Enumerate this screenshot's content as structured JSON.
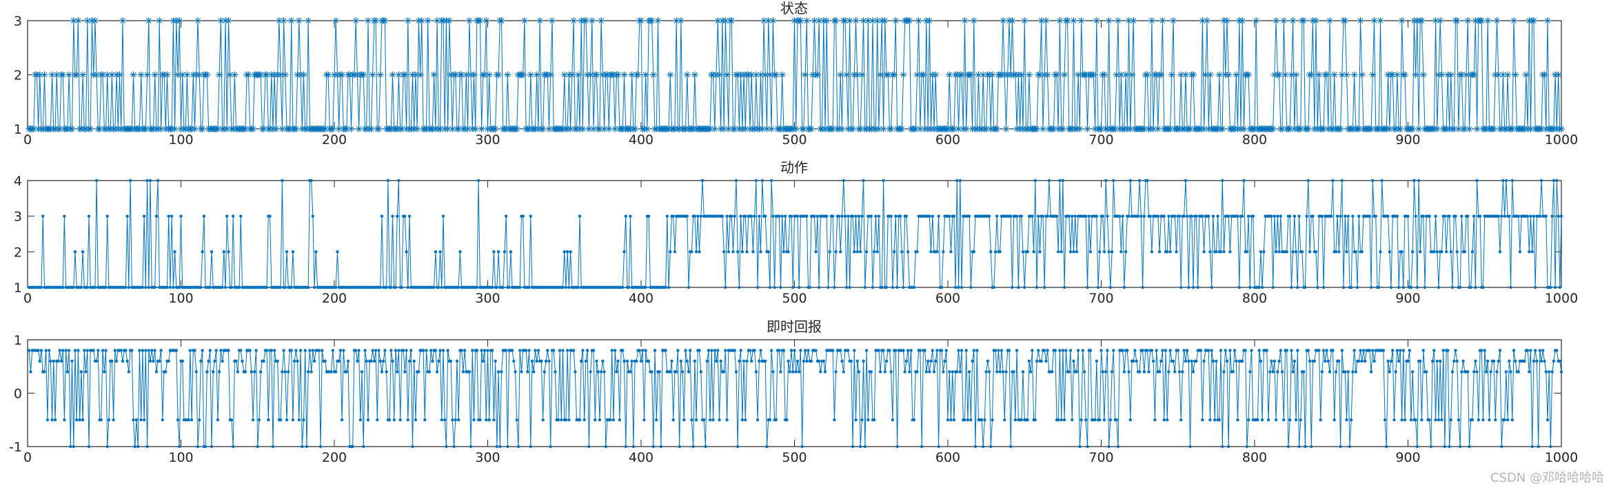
{
  "figure": {
    "watermark": "CSDN @邓哈哈哈哈",
    "series_color": "#0072BD",
    "axis_color": "#262626"
  },
  "chart_data": [
    {
      "type": "line",
      "title": "状态",
      "marker": "asterisk",
      "xlim": [
        0,
        1000
      ],
      "ylim": [
        1,
        3
      ],
      "xticks": [
        0,
        100,
        200,
        300,
        400,
        500,
        600,
        700,
        800,
        900,
        1000
      ],
      "yticks": [
        1,
        2,
        3
      ],
      "grid": false,
      "value_range": [
        1,
        3
      ],
      "n_points": 1000,
      "note_values": "discrete states {1,2,3}, approx. 57% state 1, 28% state 2, 15% state 3",
      "seed": 11
    },
    {
      "type": "line",
      "title": "动作",
      "marker": "dot",
      "xlim": [
        0,
        1000
      ],
      "ylim": [
        1,
        4
      ],
      "xticks": [
        0,
        100,
        200,
        300,
        400,
        500,
        600,
        700,
        800,
        900,
        1000
      ],
      "yticks": [
        1,
        2,
        3,
        4
      ],
      "grid": false,
      "value_range": [
        1,
        4
      ],
      "n_points": 1000,
      "phases": [
        {
          "from": 1,
          "to": 415,
          "dominant": 1
        },
        {
          "from": 416,
          "to": 1000,
          "dominant": 3
        }
      ],
      "seed": 23
    },
    {
      "type": "line",
      "title": "即时回报",
      "marker": "dot",
      "xlim": [
        0,
        1000
      ],
      "ylim": [
        -1,
        1
      ],
      "xticks": [
        0,
        100,
        200,
        300,
        400,
        500,
        600,
        700,
        800,
        900,
        1000
      ],
      "yticks": [
        -1,
        0,
        1
      ],
      "grid": false,
      "value_levels": [
        0.8,
        0.6,
        0.4,
        -0.5,
        -1
      ],
      "n_points": 1000,
      "seed": 37
    }
  ]
}
